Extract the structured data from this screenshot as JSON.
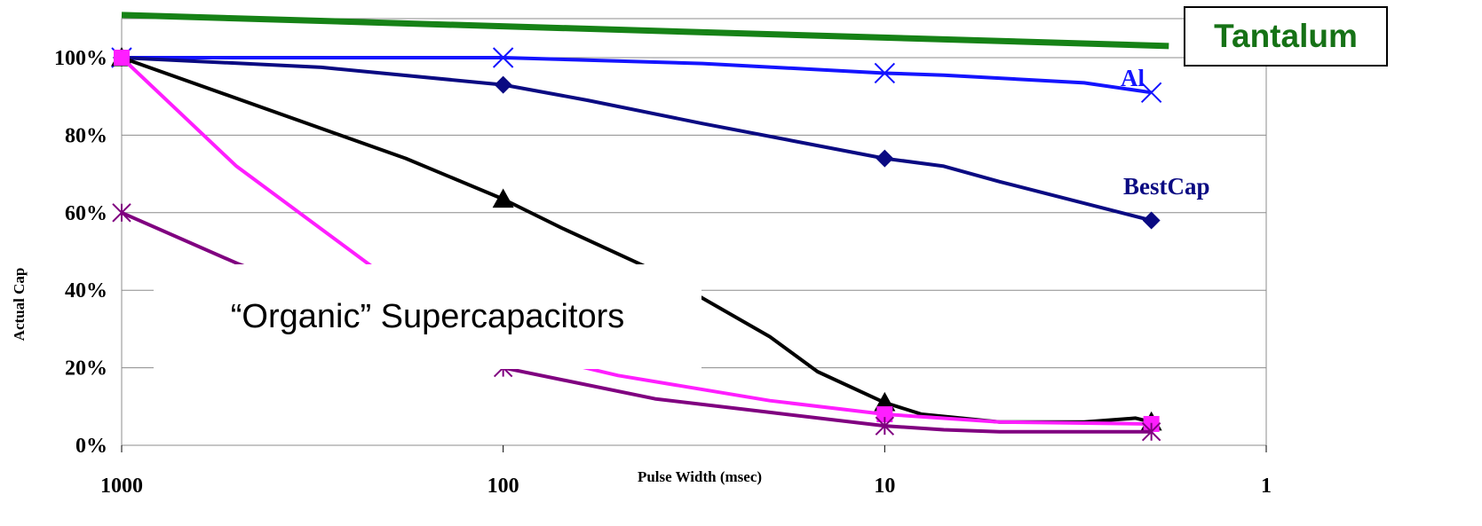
{
  "chart_data": {
    "type": "line",
    "xlabel": "Pulse Width (msec)",
    "ylabel": "Actual Cap",
    "x_scale": "log",
    "x_reversed": true,
    "xlim": [
      1000,
      1
    ],
    "ylim": [
      0,
      1.0
    ],
    "x_ticks": [
      {
        "value": 1000,
        "label": "1000"
      },
      {
        "value": 100,
        "label": "100"
      },
      {
        "value": 10,
        "label": "10"
      },
      {
        "value": 1,
        "label": "1"
      }
    ],
    "y_ticks": [
      {
        "value": 0,
        "label": "0%"
      },
      {
        "value": 0.2,
        "label": "20%"
      },
      {
        "value": 0.4,
        "label": "40%"
      },
      {
        "value": 0.6,
        "label": "60%"
      },
      {
        "value": 0.8,
        "label": "80%"
      },
      {
        "value": 1.0,
        "label": "100%"
      }
    ],
    "grid": true,
    "series": [
      {
        "name": "Tantalum",
        "color": "#168216",
        "marker": "none",
        "x": [
          1000,
          1.8
        ],
        "y": [
          1.11,
          1.03
        ]
      },
      {
        "name": "Al",
        "color": "#1414ff",
        "marker": "x",
        "x": [
          1000,
          500,
          200,
          100,
          30,
          10,
          7,
          3,
          2
        ],
        "y": [
          1.0,
          1.0,
          1.0,
          1.0,
          0.985,
          0.96,
          0.955,
          0.935,
          0.91
        ]
      },
      {
        "name": "BestCap",
        "color": "#0a0a82",
        "marker": "diamond",
        "x": [
          1000,
          300,
          100,
          60,
          30,
          10,
          7,
          5,
          2
        ],
        "y": [
          1.0,
          0.975,
          0.93,
          0.89,
          0.83,
          0.74,
          0.72,
          0.68,
          0.58
        ]
      },
      {
        "name": "",
        "color": "#000000",
        "marker": "triangle",
        "x": [
          1000,
          180,
          100,
          70,
          40,
          20,
          15,
          10,
          8,
          5,
          3,
          2.2,
          2
        ],
        "y": [
          1.0,
          0.74,
          0.635,
          0.56,
          0.45,
          0.28,
          0.19,
          0.11,
          0.08,
          0.06,
          0.06,
          0.07,
          0.06
        ]
      },
      {
        "name": "",
        "color": "#ff1eff",
        "marker": "square",
        "x": [
          1000,
          500,
          200,
          100,
          50,
          20,
          10,
          5,
          2
        ],
        "y": [
          1.0,
          0.72,
          0.43,
          0.25,
          0.18,
          0.115,
          0.08,
          0.06,
          0.055
        ]
      },
      {
        "name": "",
        "color": "#800080",
        "marker": "asterisk",
        "x": [
          1000,
          500,
          100,
          40,
          20,
          10,
          7,
          5,
          2
        ],
        "y": [
          0.6,
          0.47,
          0.2,
          0.12,
          0.085,
          0.05,
          0.04,
          0.035,
          0.035
        ]
      }
    ],
    "annotations": [
      {
        "text": "Tantalum",
        "color": "#167216"
      },
      {
        "text": "Al",
        "color": "#1414ff"
      },
      {
        "text": "BestCap",
        "color": "#0a0a82"
      },
      {
        "text": "“Organic” Supercapacitors",
        "color": "#000000"
      }
    ]
  }
}
